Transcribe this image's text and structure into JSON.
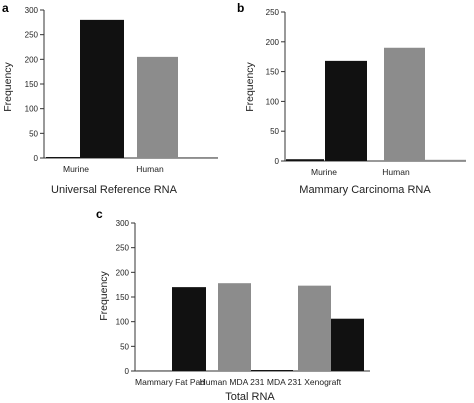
{
  "chart_data": [
    {
      "type": "bar",
      "panel_label": "a",
      "categories": [
        "Murine",
        "Human"
      ],
      "series": [
        {
          "values": [
            2,
            280
          ],
          "color": "#111111"
        },
        {
          "values": [
            205,
            2
          ],
          "color": "#8c8c8c"
        }
      ],
      "xlabel": "Universal Reference RNA",
      "ylabel": "Frequency",
      "ylim": [
        0,
        300
      ],
      "yticks": [
        0,
        50,
        100,
        150,
        200,
        250,
        300
      ],
      "grid": false
    },
    {
      "type": "bar",
      "panel_label": "b",
      "categories": [
        "Murine",
        "Human"
      ],
      "series": [
        {
          "values": [
            3,
            168
          ],
          "color": "#111111"
        },
        {
          "values": [
            190,
            2
          ],
          "color": "#8c8c8c"
        }
      ],
      "xlabel": "Mammary Carcinoma RNA",
      "ylabel": "Frequency",
      "ylim": [
        0,
        250
      ],
      "yticks": [
        0,
        50,
        100,
        150,
        200,
        250
      ],
      "grid": false
    },
    {
      "type": "bar",
      "panel_label": "c",
      "categories": [
        "Mammary Fat Pad",
        "Human MDA 231",
        "MDA 231 Xenograft"
      ],
      "series": [
        {
          "values": [
            2,
            178,
            173
          ],
          "color": "#8c8c8c"
        },
        {
          "values": [
            170,
            2,
            106
          ],
          "color": "#111111"
        }
      ],
      "xlabel": "Total RNA",
      "ylabel": "Frequency",
      "ylim": [
        0,
        300
      ],
      "yticks": [
        0,
        50,
        100,
        150,
        200,
        250,
        300
      ],
      "grid": false
    }
  ]
}
